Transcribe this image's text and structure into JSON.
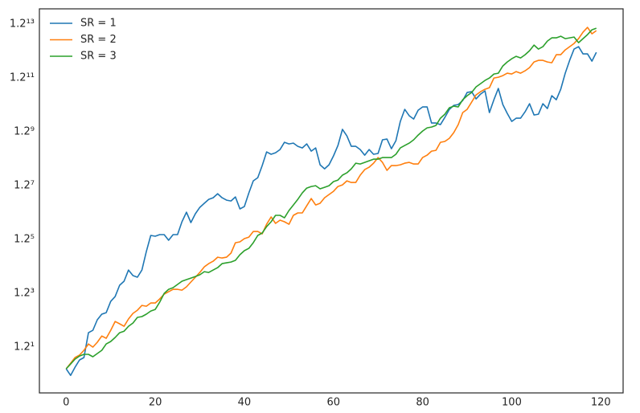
{
  "chart_data": {
    "type": "line",
    "yscale": "log",
    "x": [
      0,
      1,
      2,
      3,
      4,
      5,
      6,
      7,
      8,
      9,
      10,
      11,
      12,
      13,
      14,
      15,
      16,
      17,
      18,
      19,
      20,
      21,
      22,
      23,
      24,
      25,
      26,
      27,
      28,
      29,
      30,
      31,
      32,
      33,
      34,
      35,
      36,
      37,
      38,
      39,
      40,
      41,
      42,
      43,
      44,
      45,
      46,
      47,
      48,
      49,
      50,
      51,
      52,
      53,
      54,
      55,
      56,
      57,
      58,
      59,
      60,
      61,
      62,
      63,
      64,
      65,
      66,
      67,
      68,
      69,
      70,
      71,
      72,
      73,
      74,
      75,
      76,
      77,
      78,
      79,
      80,
      81,
      82,
      83,
      84,
      85,
      86,
      87,
      88,
      89,
      90,
      91,
      92,
      93,
      94,
      95,
      96,
      97,
      98,
      99,
      100,
      101,
      102,
      103,
      104,
      105,
      106,
      107,
      108,
      109,
      110,
      111,
      112,
      113,
      114,
      115,
      116,
      117,
      118,
      119
    ],
    "series": [
      {
        "name": "SR = 1",
        "color": "#1f77b4",
        "values": [
          1.036,
          0.991,
          1.047,
          1.1,
          1.118,
          1.323,
          1.345,
          1.444,
          1.5,
          1.516,
          1.636,
          1.69,
          1.825,
          1.875,
          2.023,
          1.948,
          1.927,
          2.023,
          2.293,
          2.557,
          2.543,
          2.571,
          2.571,
          2.475,
          2.571,
          2.571,
          2.805,
          2.994,
          2.79,
          2.962,
          3.093,
          3.179,
          3.266,
          3.302,
          3.393,
          3.302,
          3.248,
          3.231,
          3.32,
          3.06,
          3.11,
          3.411,
          3.702,
          3.783,
          4.105,
          4.503,
          4.431,
          4.479,
          4.577,
          4.807,
          4.755,
          4.781,
          4.678,
          4.627,
          4.755,
          4.528,
          4.627,
          4.127,
          4.017,
          4.127,
          4.383,
          4.703,
          5.245,
          5.021,
          4.678,
          4.678,
          4.577,
          4.406,
          4.577,
          4.431,
          4.455,
          4.887,
          4.913,
          4.602,
          4.86,
          5.538,
          6.009,
          5.753,
          5.629,
          5.976,
          6.107,
          6.107,
          5.478,
          5.478,
          5.419,
          5.69,
          6.009,
          6.174,
          6.208,
          6.379,
          6.737,
          6.773,
          6.449,
          6.663,
          6.81,
          5.879,
          6.414,
          6.922,
          6.208,
          5.847,
          5.538,
          5.659,
          5.659,
          5.911,
          6.242,
          5.784,
          5.815,
          6.242,
          6.042,
          6.591,
          6.414,
          6.885,
          7.676,
          8.375,
          9.038,
          9.186,
          8.747,
          8.747,
          8.33,
          8.844
        ]
      },
      {
        "name": "SR = 2",
        "color": "#ff7f0e",
        "values": [
          1.036,
          1.076,
          1.118,
          1.137,
          1.174,
          1.226,
          1.2,
          1.24,
          1.294,
          1.274,
          1.345,
          1.428,
          1.405,
          1.382,
          1.452,
          1.508,
          1.541,
          1.592,
          1.583,
          1.618,
          1.618,
          1.663,
          1.718,
          1.746,
          1.775,
          1.775,
          1.765,
          1.805,
          1.865,
          1.927,
          1.99,
          2.067,
          2.113,
          2.148,
          2.207,
          2.195,
          2.207,
          2.269,
          2.434,
          2.448,
          2.502,
          2.529,
          2.627,
          2.627,
          2.585,
          2.759,
          2.898,
          2.775,
          2.836,
          2.805,
          2.759,
          2.93,
          2.978,
          2.978,
          3.127,
          3.283,
          3.144,
          3.179,
          3.302,
          3.374,
          3.449,
          3.563,
          3.602,
          3.702,
          3.662,
          3.662,
          3.846,
          3.995,
          4.06,
          4.172,
          4.335,
          4.195,
          3.974,
          4.105,
          4.105,
          4.127,
          4.172,
          4.195,
          4.15,
          4.15,
          4.335,
          4.406,
          4.528,
          4.552,
          4.807,
          4.834,
          4.94,
          5.132,
          5.419,
          5.879,
          6.009,
          6.31,
          6.627,
          6.773,
          6.885,
          6.96,
          7.429,
          7.47,
          7.552,
          7.676,
          7.635,
          7.76,
          7.676,
          7.803,
          7.975,
          8.284,
          8.375,
          8.375,
          8.284,
          8.239,
          8.7,
          8.7,
          8.989,
          9.186,
          9.389,
          9.7,
          10.132,
          10.469,
          10.023,
          10.243
        ]
      },
      {
        "name": "SR = 3",
        "color": "#2ca02c",
        "values": [
          1.036,
          1.07,
          1.106,
          1.13,
          1.143,
          1.143,
          1.124,
          1.149,
          1.174,
          1.226,
          1.247,
          1.281,
          1.323,
          1.337,
          1.382,
          1.413,
          1.468,
          1.476,
          1.5,
          1.532,
          1.549,
          1.627,
          1.727,
          1.775,
          1.795,
          1.835,
          1.875,
          1.896,
          1.916,
          1.937,
          1.959,
          2.001,
          1.99,
          2.023,
          2.056,
          2.113,
          2.124,
          2.136,
          2.16,
          2.244,
          2.306,
          2.343,
          2.434,
          2.557,
          2.599,
          2.714,
          2.805,
          2.93,
          2.93,
          2.882,
          3.027,
          3.144,
          3.266,
          3.411,
          3.525,
          3.563,
          3.583,
          3.506,
          3.544,
          3.583,
          3.682,
          3.722,
          3.846,
          3.909,
          4.017,
          4.172,
          4.15,
          4.195,
          4.241,
          4.288,
          4.288,
          4.335,
          4.335,
          4.335,
          4.431,
          4.627,
          4.703,
          4.781,
          4.887,
          5.048,
          5.188,
          5.302,
          5.331,
          5.389,
          5.659,
          5.815,
          6.074,
          6.141,
          6.107,
          6.414,
          6.591,
          6.737,
          6.998,
          7.152,
          7.309,
          7.429,
          7.635,
          7.676,
          8.062,
          8.284,
          8.467,
          8.606,
          8.513,
          8.7,
          8.94,
          9.287,
          9.038,
          9.186,
          9.543,
          9.753,
          9.753,
          9.861,
          9.7,
          9.753,
          9.807,
          9.439,
          9.7,
          9.968,
          10.299,
          10.412
        ]
      }
    ],
    "xlim": [
      -6,
      125
    ],
    "xticks": [
      0,
      20,
      40,
      60,
      80,
      100,
      120
    ],
    "ylim": [
      0.88,
      11.87
    ],
    "yticks": [
      {
        "value": 1.2,
        "label": "1.2¹"
      },
      {
        "value": 1.728,
        "label": "1.2³"
      },
      {
        "value": 2.48832,
        "label": "1.2⁵"
      },
      {
        "value": 3.5831808,
        "label": "1.2⁷"
      },
      {
        "value": 5.159780352,
        "label": "1.2⁹"
      },
      {
        "value": 7.43008370688,
        "label": "1.2¹¹"
      },
      {
        "value": 10.6993205379,
        "label": "1.2¹³"
      }
    ],
    "grid": false,
    "legend": "upper left"
  }
}
